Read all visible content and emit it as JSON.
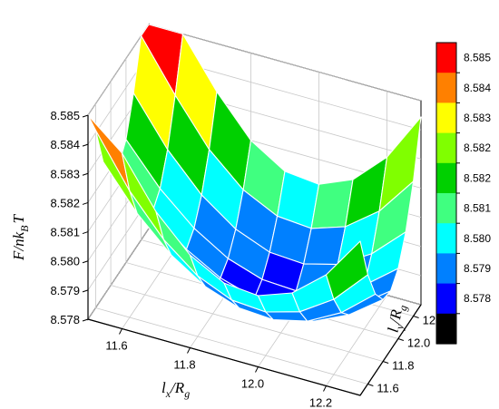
{
  "chart_data": {
    "type": "surface3d",
    "x_axis": {
      "label": "l",
      "label_sub": "x",
      "label_sep": "/",
      "label_denom": "R",
      "label_denom_sub": "g",
      "ticks": [
        "11.6",
        "11.8",
        "12.0",
        "12.2"
      ]
    },
    "y_axis": {
      "label": "l",
      "label_sub": "y",
      "label_sep": "/",
      "label_denom": "R",
      "label_denom_sub": "g",
      "ticks": [
        "11.6",
        "11.8",
        "12.0",
        "12.2"
      ]
    },
    "z_axis": {
      "label": "F/nk",
      "label_sub": "B",
      "label_tail": "T",
      "ticks": [
        "8.585",
        "8.584",
        "8.583",
        "8.582",
        "8.581",
        "8.580",
        "8.579",
        "8.578"
      ]
    },
    "xlim": [
      11.5,
      12.3
    ],
    "ylim": [
      11.5,
      12.3
    ],
    "zlim": [
      8.578,
      8.585
    ],
    "grid": true,
    "legend_position": "right",
    "colorbar": {
      "labels": [
        "8.585",
        "8.584",
        "8.583",
        "8.582",
        "8.582",
        "8.581",
        "8.580",
        "8.579",
        "8.578"
      ],
      "colors": [
        "#ff0000",
        "#ff8000",
        "#ffff00",
        "#80ff00",
        "#00d000",
        "#40ff80",
        "#00ffff",
        "#0080ff",
        "#0000ff",
        "#000000"
      ]
    },
    "surface": {
      "x": [
        11.5,
        11.6,
        11.7,
        11.8,
        11.9,
        12.0,
        12.1,
        12.2,
        12.3
      ],
      "y": [
        11.5,
        11.6,
        11.7,
        11.8,
        11.9,
        12.0,
        12.1,
        12.2,
        12.3
      ],
      "z_min": 8.5784,
      "z_min_at": [
        11.97,
        11.87
      ]
    }
  }
}
